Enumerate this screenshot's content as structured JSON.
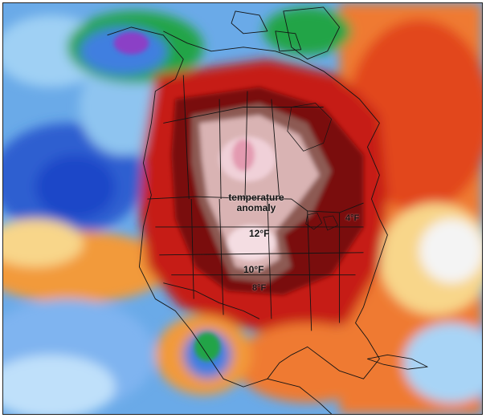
{
  "map": {
    "annotation_title": "temperature\nanomaly",
    "labels": {
      "main": "12°F",
      "mid": "10°F",
      "low": "8°F",
      "east": "4°F"
    }
  },
  "palette": {
    "cold_deep": "#1f47c8",
    "cold": "#3f7fe0",
    "cool": "#7fb4f0",
    "cool_light": "#bfe0fa",
    "neutral": "#f4f4f4",
    "warm_light": "#f8d68a",
    "warm": "#f29a3a",
    "hot": "#e2461f",
    "very_hot": "#b3140f",
    "extreme": "#7a0d0d",
    "extreme_core": "#d9b3b3",
    "anomaly_max": "#f0d0d8",
    "wet_green": "#23a447",
    "purple": "#8b3fc6",
    "border": "#141414"
  }
}
